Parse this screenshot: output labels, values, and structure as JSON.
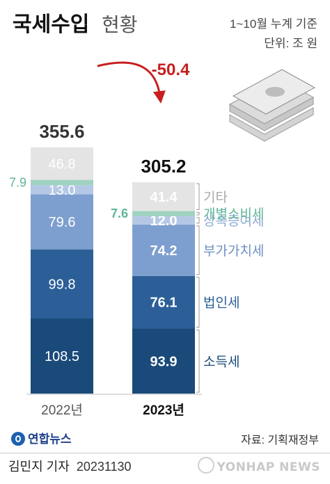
{
  "header": {
    "title_main": "국세수입",
    "title_sub": "현황",
    "period_note": "1~10월 누계 기준",
    "unit_note": "단위: 조 원"
  },
  "chart_data": {
    "type": "bar",
    "stacked": true,
    "unit": "조 원",
    "categories": [
      "2022년",
      "2023년"
    ],
    "totals": [
      355.6,
      305.2
    ],
    "change_label": "-50.4",
    "series": [
      {
        "name": "소득세",
        "values": [
          108.5,
          93.9
        ],
        "color": "#1a4a7a",
        "label_color": "#1a4a7a"
      },
      {
        "name": "법인세",
        "values": [
          99.8,
          76.1
        ],
        "color": "#2c5f97",
        "label_color": "#2c5f97"
      },
      {
        "name": "부가가치세",
        "values": [
          79.6,
          74.2
        ],
        "color": "#7d9fcf",
        "label_color": "#6b8fc4"
      },
      {
        "name": "상속증여세",
        "values": [
          13.0,
          12.0
        ],
        "color": "#b4c8e6",
        "label_color": "#8aa8d6"
      },
      {
        "name": "개별소비세",
        "values": [
          7.9,
          7.6
        ],
        "color": "#9fd3c0",
        "label_color": "#5fb59a"
      },
      {
        "name": "기타",
        "values": [
          46.8,
          41.4
        ],
        "color": "#e4e4e4",
        "label_color": "#a9a9a9"
      }
    ]
  },
  "footer": {
    "logo_text": "연합뉴스",
    "source": "자료: 기획재정부",
    "reporter": "김민지 기자",
    "date": "20231130",
    "watermark": "YONHAP NEWS"
  },
  "colors": {
    "arrow": "#c81e1e",
    "change_text": "#c81e1e"
  }
}
